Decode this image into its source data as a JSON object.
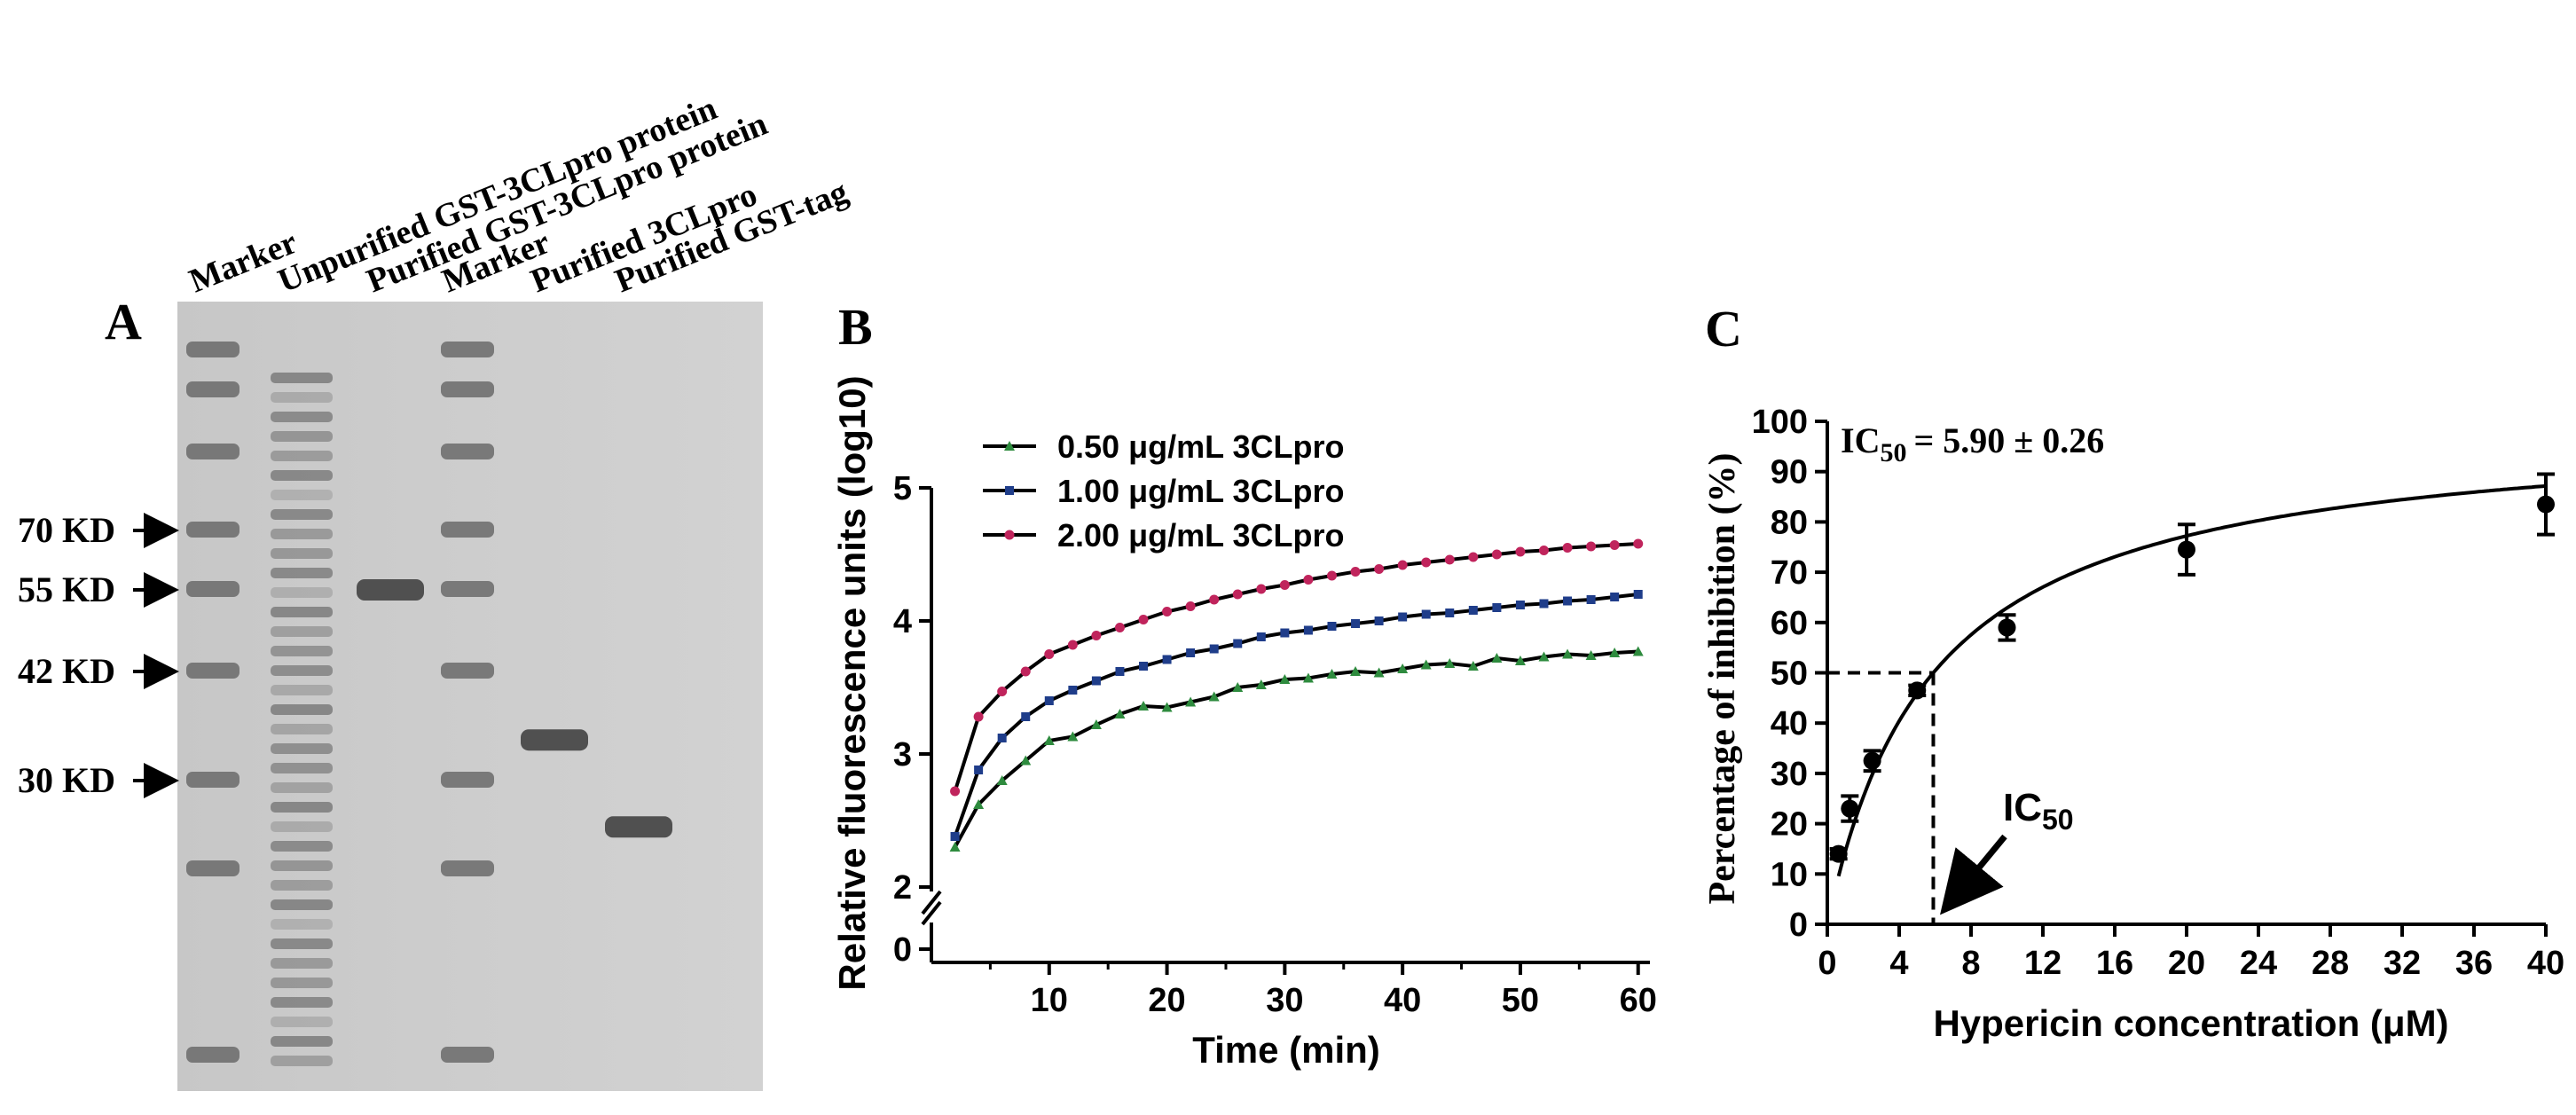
{
  "chart_data": [
    {
      "panel": "A",
      "type": "gel",
      "lane_labels": [
        "Marker",
        "Unpurified GST-3CLpro protein",
        "Purified GST-3CLpro protein",
        "Marker",
        "Purified 3CLpro",
        "Purified GST-tag"
      ],
      "size_markers": [
        {
          "label": "70 KD",
          "kda": 70
        },
        {
          "label": "55 KD",
          "kda": 55
        },
        {
          "label": "42 KD",
          "kda": 42
        },
        {
          "label": "30 KD",
          "kda": 30
        }
      ],
      "bands": [
        {
          "lane": "Purified GST-3CLpro protein",
          "kda": 55
        },
        {
          "lane": "Purified 3CLpro",
          "kda": 34
        },
        {
          "lane": "Purified GST-tag",
          "kda": 26
        }
      ]
    },
    {
      "panel": "B",
      "type": "line",
      "xlabel": "Time (min)",
      "ylabel": "Relative fluorescence units (log10)",
      "xlim": [
        0,
        61
      ],
      "ylim": [
        2,
        5
      ],
      "x_ticks": [
        10,
        20,
        30,
        40,
        50,
        60
      ],
      "y_ticks": [
        2,
        3,
        4,
        5
      ],
      "y_break_ticks": [
        0
      ],
      "legend": "top-left",
      "series": [
        {
          "name": "0.50 μg/mL 3CLpro",
          "color": "#2e8b3e",
          "marker": "triangle",
          "x": [
            2,
            4,
            6,
            8,
            10,
            12,
            14,
            16,
            18,
            20,
            22,
            24,
            26,
            28,
            30,
            32,
            34,
            36,
            38,
            40,
            42,
            44,
            46,
            48,
            50,
            52,
            54,
            56,
            58,
            60
          ],
          "values": [
            2.3,
            2.62,
            2.8,
            2.95,
            3.1,
            3.13,
            3.22,
            3.3,
            3.36,
            3.35,
            3.39,
            3.43,
            3.5,
            3.52,
            3.56,
            3.57,
            3.6,
            3.62,
            3.61,
            3.64,
            3.67,
            3.68,
            3.66,
            3.72,
            3.7,
            3.73,
            3.75,
            3.74,
            3.76,
            3.77
          ]
        },
        {
          "name": "1.00 μg/mL 3CLpro",
          "color": "#1f3d8a",
          "marker": "square",
          "x": [
            2,
            4,
            6,
            8,
            10,
            12,
            14,
            16,
            18,
            20,
            22,
            24,
            26,
            28,
            30,
            32,
            34,
            36,
            38,
            40,
            42,
            44,
            46,
            48,
            50,
            52,
            54,
            56,
            58,
            60
          ],
          "values": [
            2.38,
            2.88,
            3.12,
            3.28,
            3.4,
            3.48,
            3.55,
            3.62,
            3.66,
            3.71,
            3.76,
            3.79,
            3.83,
            3.88,
            3.91,
            3.93,
            3.96,
            3.98,
            4.0,
            4.03,
            4.05,
            4.06,
            4.08,
            4.1,
            4.12,
            4.13,
            4.15,
            4.16,
            4.18,
            4.2
          ]
        },
        {
          "name": "2.00 μg/mL 3CLpro",
          "color": "#c0245c",
          "marker": "circle",
          "x": [
            2,
            4,
            6,
            8,
            10,
            12,
            14,
            16,
            18,
            20,
            22,
            24,
            26,
            28,
            30,
            32,
            34,
            36,
            38,
            40,
            42,
            44,
            46,
            48,
            50,
            52,
            54,
            56,
            58,
            60
          ],
          "values": [
            2.72,
            3.28,
            3.47,
            3.62,
            3.75,
            3.82,
            3.89,
            3.95,
            4.01,
            4.07,
            4.11,
            4.16,
            4.2,
            4.24,
            4.27,
            4.31,
            4.34,
            4.37,
            4.39,
            4.42,
            4.44,
            4.46,
            4.48,
            4.5,
            4.52,
            4.53,
            4.55,
            4.56,
            4.57,
            4.58
          ]
        }
      ]
    },
    {
      "panel": "C",
      "type": "scatter",
      "xlabel": "Hypericin concentration (μM)",
      "ylabel": "Percentage of inhibition (%)",
      "xlim": [
        0,
        40
      ],
      "ylim": [
        0,
        100
      ],
      "x_ticks": [
        0,
        4,
        8,
        12,
        16,
        20,
        24,
        28,
        32,
        36,
        40
      ],
      "y_ticks": [
        0,
        10,
        20,
        30,
        40,
        50,
        60,
        70,
        80,
        90,
        100
      ],
      "points": {
        "x": [
          0.625,
          1.25,
          2.5,
          5,
          10,
          20,
          40
        ],
        "y": [
          14,
          23,
          32.5,
          46.5,
          59,
          74.5,
          83.5
        ],
        "err": [
          1,
          2.5,
          2,
          1,
          2.5,
          5,
          6
        ]
      },
      "fit": {
        "type": "hyperbolic",
        "ic50": 5.9,
        "top": 100
      },
      "ic50_text": {
        "prefix": "IC",
        "sub": "50",
        "value": "= 5.90 ± 0.26"
      },
      "arrow_label": {
        "prefix": "IC",
        "sub": "50"
      },
      "guide_y": 50,
      "guide_x": 5.9
    }
  ]
}
